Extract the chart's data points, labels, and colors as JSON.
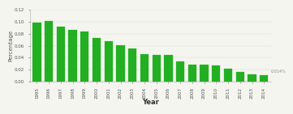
{
  "years": [
    "1995",
    "1996",
    "1997",
    "1998",
    "1999",
    "2000",
    "2001",
    "2002",
    "2003",
    "2004",
    "2005",
    "2006",
    "2007",
    "2008",
    "2009",
    "2010",
    "2011",
    "2012",
    "2013",
    "2014"
  ],
  "values": [
    0.099,
    0.101,
    0.092,
    0.086,
    0.083,
    0.073,
    0.067,
    0.061,
    0.055,
    0.046,
    0.044,
    0.044,
    0.034,
    0.029,
    0.028,
    0.027,
    0.021,
    0.016,
    0.012,
    0.011
  ],
  "bar_color": "#22b022",
  "bar_edge_color": "#22b022",
  "ylabel": "Percentage",
  "xlabel": "Year",
  "ylim": [
    0,
    0.12
  ],
  "yticks": [
    0,
    0.02,
    0.04,
    0.06,
    0.08,
    0.1,
    0.12
  ],
  "annotation": "0.014%",
  "background_color": "#f5f5f0",
  "axis_fontsize": 5,
  "tick_fontsize": 4,
  "xlabel_fontsize": 6
}
